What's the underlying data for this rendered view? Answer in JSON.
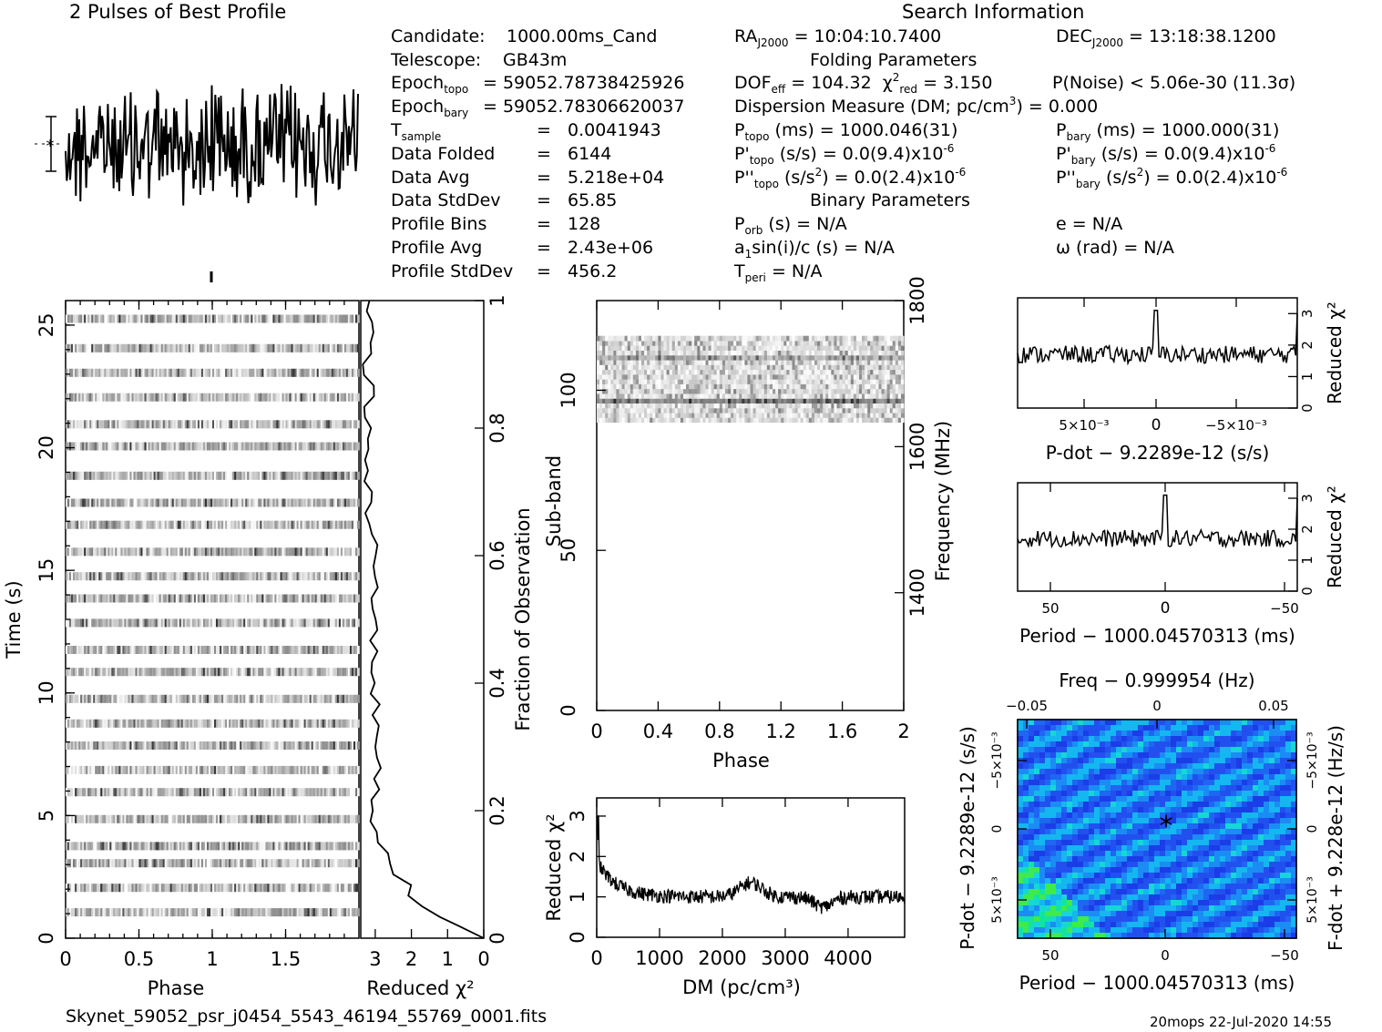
{
  "header": {
    "profile_title": "2 Pulses of Best Profile",
    "search_title": "Search Information",
    "folding_title": "Folding Parameters",
    "binary_title": "Binary Parameters",
    "footer_file": "Skynet_59052_psr_j0454_5543_46194_55769_0001.fits",
    "footer_stamp": "20mops 22-Jul-2020 14:55"
  },
  "info_left": [
    {
      "label": "Candidate:",
      "value": "1000.00ms_Cand"
    },
    {
      "label": "Telescope:",
      "value": "GB43m"
    },
    {
      "label": "Epoch",
      "sub": "topo",
      "value": "= 59052.78738425926"
    },
    {
      "label": "Epoch",
      "sub": "bary",
      "value": "= 59052.78306620037"
    },
    {
      "label": "T",
      "sub": "sample",
      "value": "0.0041943"
    },
    {
      "label": "Data Folded",
      "value": "6144"
    },
    {
      "label": "Data Avg",
      "value": "5.218e+04"
    },
    {
      "label": "Data StdDev",
      "value": "65.85"
    },
    {
      "label": "Profile Bins",
      "value": "128"
    },
    {
      "label": "Profile Avg",
      "value": "2.43e+06"
    },
    {
      "label": "Profile StdDev",
      "value": "456.2"
    }
  ],
  "info_mid": {
    "ra": "= 10:04:10.7400",
    "dec": "= 13:18:38.1200",
    "dof": "= 104.32",
    "chi2": "= 3.150",
    "pnoise": "P(Noise) < 5.06e-30  (11.3σ)",
    "dm": "Dispersion Measure (DM; pc/cm",
    "dm_val": ") = 0.000",
    "ptopo": "(ms) =  1000.046(31)",
    "pbary": "(ms) =  1000.000(31)",
    "pdtopo": "(s/s) = 0.0(9.4)x10",
    "pdbary": "(s/s) = 0.0(9.4)x10",
    "pddtopo": "= 0.0(2.4)x10",
    "pddbary": "= 0.0(2.4)x10",
    "exp6": "-6",
    "porb": "(s) = N/A",
    "asini": "sin(i)/c (s) = N/A",
    "tperi": "= N/A",
    "ecc": "e = N/A",
    "omega": "ω (rad) = N/A"
  },
  "chart_data": [
    {
      "type": "line",
      "name": "profile",
      "title": "2 Pulses of Best Profile",
      "x_range": [
        0,
        2
      ]
    },
    {
      "type": "heatmap",
      "name": "time-phase",
      "xlabel": "Phase",
      "ylabel": "Time (s)",
      "xlim": [
        0,
        2
      ],
      "ylim": [
        0,
        26
      ],
      "xticks": [
        "0",
        "0.5",
        "1",
        "1.5"
      ],
      "yticks": [
        "0",
        "5",
        "10",
        "15",
        "20",
        "25"
      ]
    },
    {
      "type": "line",
      "name": "reduced-chi2-vs-time",
      "xlabel": "Reduced χ²",
      "ylabel": "Fraction of Observation",
      "xticks": [
        "3",
        "2",
        "1",
        "0"
      ],
      "yticks": [
        "0",
        "0.2",
        "0.4",
        "0.6",
        "0.8",
        "1"
      ]
    },
    {
      "type": "heatmap",
      "name": "subband-phase",
      "xlabel": "Phase",
      "ylabel": "Sub-band",
      "ylabel2": "Frequency (MHz)",
      "xticks": [
        "0",
        "0.4",
        "0.8",
        "1.2",
        "1.6",
        "2"
      ],
      "yticks": [
        "0",
        "50",
        "100"
      ],
      "yticks2": [
        "1400",
        "1600",
        "1800"
      ]
    },
    {
      "type": "line",
      "name": "reduced-chi2-vs-dm",
      "xlabel": "DM (pc/cm³)",
      "ylabel": "Reduced χ²",
      "xticks": [
        "0",
        "1000",
        "2000",
        "3000",
        "4000"
      ],
      "yticks": [
        "0",
        "1",
        "2",
        "3"
      ]
    },
    {
      "type": "line",
      "name": "reduced-chi2-vs-pdot",
      "xlabel": "P-dot − 9.2289e-12 (s/s)",
      "ylabel": "Reduced χ²",
      "xticks": [
        "5×10⁻³",
        "0",
        "−5×10⁻³"
      ],
      "yticks": [
        "0",
        "1",
        "2",
        "3"
      ]
    },
    {
      "type": "line",
      "name": "reduced-chi2-vs-period",
      "xlabel": "Period − 1000.04570313 (ms)",
      "ylabel": "Reduced χ²",
      "xticks": [
        "50",
        "0",
        "−50"
      ],
      "yticks": [
        "0",
        "1",
        "2",
        "3"
      ]
    },
    {
      "type": "heatmap",
      "name": "period-pdot",
      "xlabel": "Period − 1000.04570313 (ms)",
      "ylabel": "P-dot − 9.2289e-12 (s/s)",
      "xlabel2": "Freq − 0.999954 (Hz)",
      "ylabel2": "F-dot + 9.228e-12 (Hz/s)",
      "xticks": [
        "50",
        "0",
        "−50"
      ],
      "xticks2": [
        "−0.05",
        "0",
        "0.05"
      ],
      "yticks": [
        "5×10⁻³",
        "0",
        "−5×10⁻³"
      ],
      "yticks2": [
        "5×10⁻³",
        "0",
        "−5×10⁻³"
      ]
    }
  ]
}
